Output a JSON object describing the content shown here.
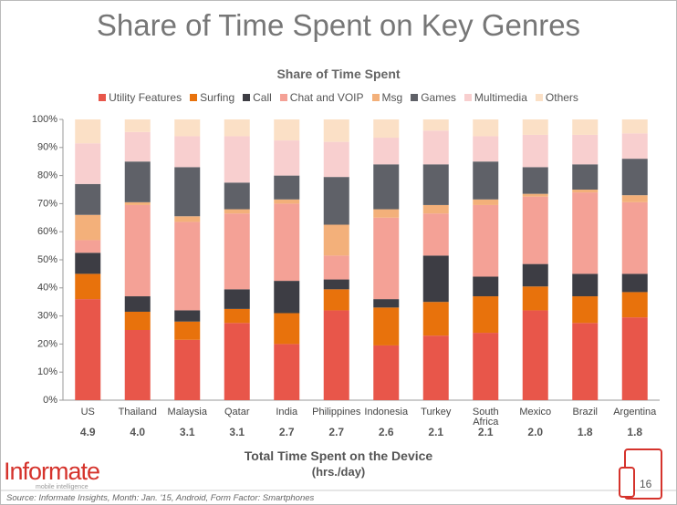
{
  "page_title": "Share of Time Spent on Key Genres",
  "chart_data": {
    "type": "stacked_bar",
    "title": "Share of Time Spent",
    "categories": [
      "US",
      "Thailand",
      "Malaysia",
      "Qatar",
      "India",
      "Philippines",
      "Indonesia",
      "Turkey",
      "South Africa",
      "Mexico",
      "Brazil",
      "Argentina"
    ],
    "series": [
      {
        "name": "Utility Features",
        "color": "#e8564a",
        "values": [
          36,
          25,
          21.5,
          27.5,
          20,
          32,
          19.5,
          23,
          24,
          32,
          27.5,
          29.5
        ]
      },
      {
        "name": "Surfing",
        "color": "#e8720c",
        "values": [
          9,
          6.5,
          6.5,
          5,
          11,
          7.5,
          13.5,
          12,
          13,
          8.5,
          9.5,
          9
        ]
      },
      {
        "name": "Call",
        "color": "#3d3d44",
        "values": [
          7.5,
          5.5,
          4,
          7,
          11.5,
          3.5,
          3,
          16.5,
          7,
          8,
          8,
          6.5
        ]
      },
      {
        "name": "Chat and VOIP",
        "color": "#f4a196",
        "values": [
          4.5,
          32.5,
          31.5,
          27,
          27.5,
          8.5,
          29,
          15,
          25.5,
          24,
          29,
          25.5
        ]
      },
      {
        "name": "Msg",
        "color": "#f3b07a",
        "values": [
          9,
          1,
          2,
          1.5,
          1.5,
          11,
          3,
          3,
          2,
          1,
          1,
          2.5
        ]
      },
      {
        "name": "Games",
        "color": "#5f6168",
        "values": [
          11,
          14.5,
          17.5,
          9.5,
          8.5,
          17,
          16,
          14.5,
          13.5,
          9.5,
          9,
          13
        ]
      },
      {
        "name": "Multimedia",
        "color": "#f8cfcf",
        "values": [
          14.5,
          10.5,
          11,
          16.5,
          12.5,
          12.5,
          9.5,
          12,
          9,
          11.5,
          10.5,
          9
        ]
      },
      {
        "name": "Others",
        "color": "#fbe0c6",
        "values": [
          8.5,
          4.5,
          6,
          6,
          7.5,
          8,
          6.5,
          4,
          6,
          5.5,
          5.5,
          5
        ]
      }
    ],
    "ylim": [
      0,
      100
    ],
    "yticks": [
      {
        "value": 0,
        "label": "0%"
      },
      {
        "value": 10,
        "label": "10%"
      },
      {
        "value": 20,
        "label": "20%"
      },
      {
        "value": 30,
        "label": "30%"
      },
      {
        "value": 40,
        "label": "40%"
      },
      {
        "value": 50,
        "label": "50%"
      },
      {
        "value": 60,
        "label": "60%"
      },
      {
        "value": 70,
        "label": "70%"
      },
      {
        "value": 80,
        "label": "80%"
      },
      {
        "value": 90,
        "label": "90%"
      },
      {
        "value": 100,
        "label": "100%"
      }
    ],
    "legend": "top",
    "time_spent": {
      "title": "Total Time Spent on the Device",
      "unit": "(hrs./day)",
      "values": [
        4.9,
        4.0,
        3.1,
        3.1,
        2.7,
        2.7,
        2.6,
        2.1,
        2.1,
        2.0,
        1.8,
        1.8
      ],
      "value_labels": [
        "4.9",
        "4.0",
        "3.1",
        "3.1",
        "2.7",
        "2.7",
        "2.6",
        "2.1",
        "2.1",
        "2.0",
        "1.8",
        "1.8"
      ]
    }
  },
  "footer": {
    "logo": "Informate",
    "tagline": "mobile intelligence",
    "page_number": "16",
    "source": "Source: Informate Insights, Month: Jan. '15, Android, Form Factor: Smartphones"
  }
}
